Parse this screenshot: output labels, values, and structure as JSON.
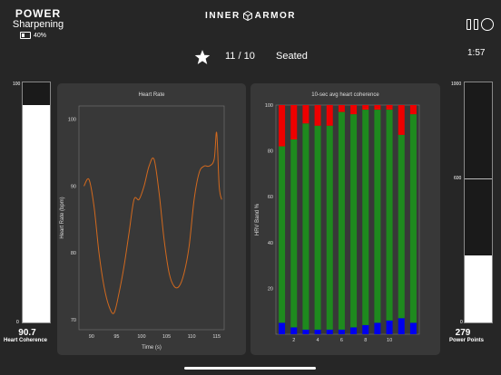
{
  "app": {
    "logo_top": "POWER",
    "logo_bottom": "Sharpening",
    "battery": "40%",
    "brand_left": "INNER",
    "brand_right": "ARMOR",
    "timer": "1:57"
  },
  "session": {
    "round": "11 / 10",
    "posture": "Seated"
  },
  "heart_coherence": {
    "label": "Heart Coherence",
    "value": "90.7",
    "max_tick": "100",
    "min_tick": "0",
    "fill_percent": 90.7
  },
  "power_points": {
    "label": "Power Points",
    "value": "279",
    "ticks": [
      "1000",
      "600",
      "0"
    ],
    "fill_fraction": 0.279
  },
  "chart_data": [
    {
      "type": "line",
      "title": "Heart Rate",
      "xlabel": "Time (s)",
      "ylabel": "Heart Rate (bpm)",
      "xlim": [
        87.5,
        116.5
      ],
      "ylim": [
        68.5,
        102
      ],
      "xticks": [
        90,
        95,
        100,
        105,
        110,
        115
      ],
      "yticks": [
        70,
        80,
        90,
        100
      ],
      "color": "#d2691e",
      "x": [
        88.5,
        89.5,
        90.5,
        91.5,
        92.5,
        93.5,
        94.5,
        95.5,
        96.5,
        97.5,
        98.5,
        99.5,
        100.5,
        101.5,
        102.5,
        103.5,
        104.5,
        105.5,
        106.5,
        107.5,
        108.5,
        109.5,
        110.5,
        111.5,
        112.5,
        113.5,
        114.5,
        115.0,
        115.5,
        116.0
      ],
      "y": [
        90,
        91,
        87,
        80,
        75,
        72,
        71,
        74,
        78,
        83,
        88,
        88,
        90,
        93,
        94,
        89,
        82,
        77,
        75,
        75,
        77,
        81,
        88,
        92,
        93,
        93,
        94,
        98,
        90,
        88
      ]
    },
    {
      "type": "bar",
      "stacked": true,
      "title": "10-sec avg heart coherence",
      "ylabel": "HRV Band %",
      "ylim": [
        0,
        100
      ],
      "yticks": [
        20,
        40,
        60,
        80,
        100
      ],
      "xticks": [
        2,
        4,
        6,
        8,
        10
      ],
      "categories": [
        1,
        2,
        3,
        4,
        5,
        6,
        7,
        8,
        9,
        10,
        11,
        12
      ],
      "series": [
        {
          "color": "#0000ee",
          "values": [
            5,
            3,
            2,
            2,
            2,
            2,
            3,
            4,
            5,
            6,
            7,
            5
          ]
        },
        {
          "color": "#1e8a1e",
          "values": [
            77,
            82,
            90,
            89,
            89,
            95,
            93,
            94,
            93,
            92,
            80,
            91
          ]
        },
        {
          "color": "#ee0000",
          "values": [
            18,
            15,
            8,
            9,
            9,
            3,
            4,
            2,
            2,
            2,
            13,
            4
          ]
        }
      ]
    }
  ]
}
